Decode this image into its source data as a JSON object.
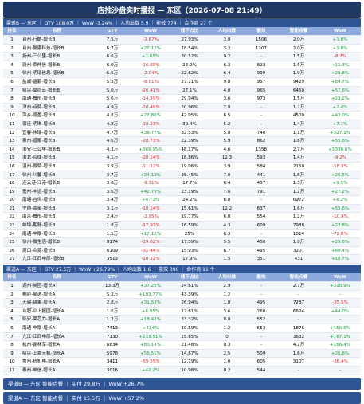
{
  "header": {
    "title": "店推沙盘实时播报 — 东区（2026-07-08 21:49）"
  },
  "columns": [
    "排名",
    "名称",
    "GTV",
    "WoW",
    "线下占比",
    "人均出数",
    "能效",
    "智能点餐",
    "WoW"
  ],
  "sections": [
    {
      "summary": "渠道B — 东区 ｜ GTV 108.0万 ｜ WoW -3.24% ｜ 人均出数 5.9 ｜ 能效 774 ｜ 合作商 27 个",
      "rows": [
        [
          "1",
          "台州-行酷-增长B",
          "7.5万",
          "-2.87%",
          "27.93%",
          "3.8",
          "1506",
          "2.0万",
          "+1.8%"
        ],
        [
          "2",
          "台州-磐康科技-增长B",
          "6.7万",
          "+27.12%",
          "18.54%",
          "3.2",
          "1207",
          "2.0万",
          "+1.8%"
        ],
        [
          "3",
          "扬州-三公里-增长B",
          "6.6万",
          "+7.65%",
          "30.52%",
          "9.2",
          "-",
          "1.5万",
          "-8.7%"
        ],
        [
          "4",
          "赣州-鼎伸信-增长B",
          "6.0万",
          "-16.69%",
          "23.2%",
          "6.3",
          "823",
          "1.5万",
          "+11.3%"
        ],
        [
          "5",
          "徐州-明瑞信息-增长B",
          "5.5万",
          "-2.04%",
          "22.62%",
          "6.4",
          "990",
          "1.9万",
          "+29.8%"
        ],
        [
          "6",
          "盐城-疆鹏-增长B",
          "5.3万",
          "-8.01%",
          "27.11%",
          "9.8",
          "957",
          "9429",
          "+84.7%"
        ],
        [
          "7",
          "绍兴-莫同云-增长B",
          "5.0万",
          "-20.41%",
          "27.1%",
          "4.0",
          "965",
          "6450",
          "+57.6%"
        ],
        [
          "8",
          "南通-餐彤-增长B",
          "5.0万",
          "-14.59%",
          "29.94%",
          "3.6",
          "973",
          "1.5万",
          "+13.2%"
        ],
        [
          "9",
          "漳州-点赞-增长B",
          "4.9万",
          "-10.49%",
          "20.96%",
          "7.8",
          "-",
          "1.2万",
          "+2.4%"
        ],
        [
          "10",
          "萍乡-顺盈-增长B",
          "4.8万",
          "+27.86%",
          "42.05%",
          "6.5",
          "-",
          "4500",
          "+43.0%"
        ],
        [
          "11",
          "宿迁-明琳-增长B",
          "4.8万",
          "-18.23%",
          "30.4%",
          "5.2",
          "-",
          "1.4万",
          "+7.1%"
        ],
        [
          "12",
          "宜春-伟瑞-增长B",
          "4.7万",
          "+39.77%",
          "32.53%",
          "5.8",
          "740",
          "1.1万",
          "+327.1%"
        ],
        [
          "13",
          "泉州-道顺-增长B",
          "4.6万",
          "-28.73%",
          "22.39%",
          "5.9",
          "862",
          "1.6万",
          "+55.6%"
        ],
        [
          "14",
          "淮安-三公里-增长B",
          "4.3万",
          "+369.95%",
          "48.17%",
          "4.6",
          "1358",
          "2.7万",
          "+1336.6%"
        ],
        [
          "15",
          "淮北-众成-增长B",
          "4.1万",
          "-28.14%",
          "18.86%",
          "12.3",
          "593",
          "1.4万",
          "-9.2%"
        ],
        [
          "16",
          "温州-微赞-增长B",
          "3.9万",
          "-11.12%",
          "19.06%",
          "3.9",
          "584",
          "2150",
          "-58.3%"
        ],
        [
          "17",
          "徐州-川馨-增长B",
          "3.7万",
          "+34.13%",
          "35.45%",
          "7.0",
          "441",
          "1.8万",
          "+26.5%"
        ],
        [
          "18",
          "连云港-江港-增长B",
          "3.6万",
          "-9.31%",
          "17.7%",
          "6.4",
          "457",
          "1.3万",
          "+9.5%"
        ],
        [
          "19",
          "亳州-丰远-增长B",
          "3.6万",
          "+42.79%",
          "23.19%",
          "7.6",
          "791",
          "1.2万",
          "+27.2%"
        ],
        [
          "20",
          "南通-吉恒-增长B",
          "3.4万",
          "+4.73%",
          "24.2%",
          "8.0",
          "-",
          "6972",
          "+6.2%"
        ],
        [
          "21",
          "宁德-南星-增长B",
          "3.1万",
          "-18.14%",
          "15.61%",
          "12.2",
          "637",
          "1.6万",
          "+55.6%"
        ],
        [
          "22",
          "南京-餐彤-增长B",
          "2.4万",
          "-2.95%",
          "19.77%",
          "6.8",
          "554",
          "1.2万",
          "-10.9%"
        ],
        [
          "23",
          "蚌埠-期舒-增长B",
          "1.8万",
          "-17.97%",
          "16.59%",
          "4.3",
          "609",
          "7988",
          "+23.8%"
        ],
        [
          "24",
          "南通-申厚-增长B",
          "1.5万",
          "+17.12%",
          "25%",
          "6.3",
          "-",
          "1014",
          "-72.0%"
        ],
        [
          "25",
          "徐州-微生活-增长B",
          "8174",
          "-29.02%",
          "17.39%",
          "5.5",
          "458",
          "1.9万",
          "+29.8%"
        ],
        [
          "26",
          "周口-众源-增长B",
          "6109",
          "-32.44%",
          "15.93%",
          "6.7",
          "495",
          "3207",
          "+60.4%"
        ],
        [
          "27",
          "九江-江西申厚-增长B",
          "3513",
          "-20.12%",
          "17.9%",
          "1.5",
          "351",
          "431",
          "+18.7%"
        ]
      ]
    },
    {
      "summary": "渠道A — 东区 ｜ GTV 27.5万 ｜ WoW +26.79% ｜ 人均出数 1.6 ｜ 能效 390 ｜ 合作商 11 个",
      "rows": [
        [
          "1",
          "湖州-美团-增长A",
          "13.3万",
          "+37.25%",
          "24.61%",
          "2.9",
          "-",
          "2.7万",
          "+310.9%"
        ],
        [
          "2",
          "桐庐-星选-增长A",
          "5.2万",
          "+103.77%",
          "43.39%",
          "1.2",
          "-",
          "-",
          "-"
        ],
        [
          "3",
          "无锡-锦果-增长A",
          "2.8万",
          "+31.53%",
          "26.94%",
          "1.8",
          "495",
          "7287",
          "-35.5%"
        ],
        [
          "4",
          "合肥-众上报团-增长A",
          "1.6万",
          "+6.95%",
          "12.61%",
          "3.6",
          "260",
          "6624",
          "+44.0%"
        ],
        [
          "5",
          "临安-莱芯力-增长A",
          "1.2万",
          "+18.42%",
          "33.32%",
          "0.8",
          "552",
          "-",
          "-"
        ],
        [
          "6",
          "南通-申厚-增长A",
          "7413",
          "+114%",
          "10.59%",
          "1.2",
          "553",
          "1876",
          "+156.6%"
        ],
        [
          "7",
          "九江-江西申厚-增长A",
          "7130",
          "+233.51%",
          "25.65%",
          "0",
          "-",
          "3632",
          "+167.1%"
        ],
        [
          "8",
          "杭州-谢林军-增长A",
          "6634",
          "+80.14%",
          "21.48%",
          "0.3",
          "-",
          "4.2万",
          "+166.4%"
        ],
        [
          "9",
          "绍兴-上嘉元机-增长A",
          "5978",
          "+55.51%",
          "14.67%",
          "2.5",
          "509",
          "1.6万",
          "+20.8%"
        ],
        [
          "10",
          "常州-杭机电-增长A",
          "3411",
          "-59.55%",
          "12.79%",
          "1.0",
          "605",
          "3107",
          "-36.4%"
        ],
        [
          "11",
          "泰州-申信-增长A",
          "3016",
          "+42.2%",
          "10.98%",
          "0.2",
          "544",
          "-",
          "-"
        ]
      ]
    }
  ],
  "footer": [
    "渠道B — 东区 智能点餐 ｜ 实付 29.8万 ｜ WoW +26.7%",
    "渠道A — 东区 智能点餐 ｜ 实付 15.5万 ｜ WoW +57.2%"
  ]
}
